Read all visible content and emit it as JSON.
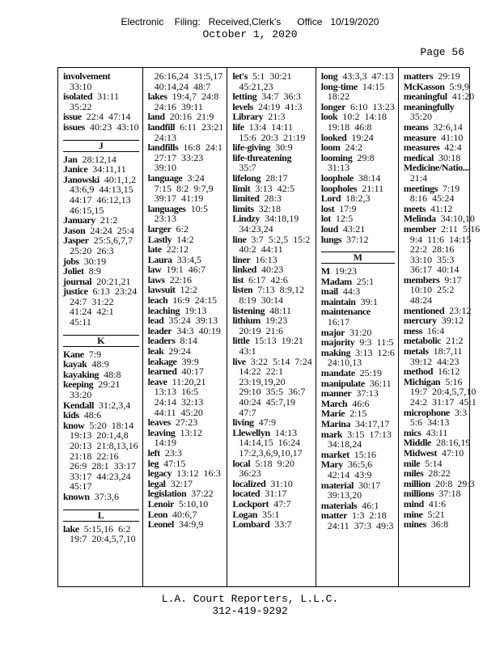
{
  "header": {
    "filing": "Electronic    Filing:   Received,Clerk's      Office   10/19/2020",
    "date": "October 1, 2020"
  },
  "page_label": "Page 56",
  "footer": {
    "company": "L.A. Court Reporters, L.L.C.",
    "phone": "312-419-9292"
  },
  "columns": [
    [
      {
        "t": "involvement",
        "r": "",
        "c": [
          "33:10"
        ]
      },
      {
        "t": "isolated",
        "r": "31:11",
        "c": [
          "35:22"
        ]
      },
      {
        "t": "issue",
        "r": "22:4  47:14",
        "c": []
      },
      {
        "t": "issues",
        "r": "40:23  43:10",
        "c": []
      },
      {
        "h": "J"
      },
      {
        "t": "Jan",
        "r": "28:12,14",
        "c": []
      },
      {
        "t": "Janice",
        "r": "34:11,11",
        "c": []
      },
      {
        "t": "Janowski",
        "r": "40:1,1,2",
        "c": [
          "43:6,9  44:13,15",
          "44:17  46:12,13",
          "46:15,15"
        ]
      },
      {
        "t": "January",
        "r": "21:2",
        "c": []
      },
      {
        "t": "Jason",
        "r": "24:24  25:4",
        "c": []
      },
      {
        "t": "Jasper",
        "r": "25:5,6,7,7",
        "c": [
          "25:20  26:3"
        ]
      },
      {
        "t": "jobs",
        "r": "30:19",
        "c": []
      },
      {
        "t": "Joliet",
        "r": "8:9",
        "c": []
      },
      {
        "t": "journal",
        "r": "20:21,21",
        "c": []
      },
      {
        "t": "justice",
        "r": "6:13  23:24",
        "c": [
          "24:7  31:22",
          "41:24  42:1",
          "45:11"
        ]
      },
      {
        "h": "K"
      },
      {
        "t": "Kane",
        "r": "7:9",
        "c": []
      },
      {
        "t": "kayak",
        "r": "48:9",
        "c": []
      },
      {
        "t": "kayaking",
        "r": "48:8",
        "c": []
      },
      {
        "t": "keeping",
        "r": "29:21",
        "c": [
          "33:20"
        ]
      },
      {
        "t": "Kendall",
        "r": "31:2,3,4",
        "c": []
      },
      {
        "t": "kids",
        "r": "48:6",
        "c": []
      },
      {
        "t": "know",
        "r": "5:20  18:14",
        "c": [
          "19:13  20:1,4,8",
          "20:13  21:8,13,16",
          "21:18  22:16",
          "26:9  28:1  33:17",
          "33:17  44:23,24",
          "45:17"
        ]
      },
      {
        "t": "known",
        "r": "37:3,6",
        "c": []
      },
      {
        "h": "L"
      },
      {
        "t": "lake",
        "r": "5:15,16  6:2",
        "c": [
          "19:7  20:4,5,7,10"
        ]
      }
    ],
    [
      {
        "t": "",
        "r": "",
        "c": [
          "26:16,24  31:5,17",
          "40:14,24  48:7"
        ]
      },
      {
        "t": "lakes",
        "r": "19:4,7  24:8",
        "c": [
          "24:16  39:11"
        ]
      },
      {
        "t": "land",
        "r": "20:16  21:9",
        "c": []
      },
      {
        "t": "landfill",
        "r": "6:11  23:21",
        "c": [
          "24:13"
        ]
      },
      {
        "t": "landfills",
        "r": "16:8  24:1",
        "c": [
          "27:17  33:23",
          "39:10"
        ]
      },
      {
        "t": "language",
        "r": "3:24",
        "c": [
          "7:15  8:2  9:7,9",
          "39:17  41:19"
        ]
      },
      {
        "t": "languages",
        "r": "10:5",
        "c": [
          "23:13"
        ]
      },
      {
        "t": "larger",
        "r": "6:2",
        "c": []
      },
      {
        "t": "Lastly",
        "r": "14:2",
        "c": []
      },
      {
        "t": "late",
        "r": "22:12",
        "c": []
      },
      {
        "t": "Laura",
        "r": "33:4,5",
        "c": []
      },
      {
        "t": "law",
        "r": "19:1  46:7",
        "c": []
      },
      {
        "t": "laws",
        "r": "22:16",
        "c": []
      },
      {
        "t": "lawsuit",
        "r": "12:2",
        "c": []
      },
      {
        "t": "leach",
        "r": "16:9  24:15",
        "c": []
      },
      {
        "t": "leaching",
        "r": "19:13",
        "c": []
      },
      {
        "t": "lead",
        "r": "35:24  39:13",
        "c": []
      },
      {
        "t": "leader",
        "r": "34:3  40:19",
        "c": []
      },
      {
        "t": "leaders",
        "r": "8:14",
        "c": []
      },
      {
        "t": "leak",
        "r": "29:24",
        "c": []
      },
      {
        "t": "leakage",
        "r": "39:9",
        "c": []
      },
      {
        "t": "learned",
        "r": "40:17",
        "c": []
      },
      {
        "t": "leave",
        "r": "11:20,21",
        "c": [
          "13:13  16:5",
          "24:14  32:13",
          "44:11  45:20"
        ]
      },
      {
        "t": "leaves",
        "r": "27:23",
        "c": []
      },
      {
        "t": "leaving",
        "r": "13:12",
        "c": [
          "14:19"
        ]
      },
      {
        "t": "left",
        "r": "23:3",
        "c": []
      },
      {
        "t": "leg",
        "r": "47:15",
        "c": []
      },
      {
        "t": "legacy",
        "r": "13:12  16:3",
        "c": []
      },
      {
        "t": "legal",
        "r": "32:17",
        "c": []
      },
      {
        "t": "legislation",
        "r": "37:22",
        "c": []
      },
      {
        "t": "Lenoir",
        "r": "5:10,10",
        "c": []
      },
      {
        "t": "Leon",
        "r": "40:6,7",
        "c": []
      },
      {
        "t": "Leonel",
        "r": "34:9,9",
        "c": []
      }
    ],
    [
      {
        "t": "let's",
        "r": "5:1  30:21",
        "c": [
          "45:21,23"
        ]
      },
      {
        "t": "letting",
        "r": "34:7  36:3",
        "c": []
      },
      {
        "t": "levels",
        "r": "24:19  41:3",
        "c": []
      },
      {
        "t": "Library",
        "r": "21:3",
        "c": []
      },
      {
        "t": "life",
        "r": "13:4  14:11",
        "c": [
          "15:6  20:3  21:19"
        ]
      },
      {
        "t": "life-giving",
        "r": "30:9",
        "c": []
      },
      {
        "t": "life-threatening",
        "r": "",
        "c": [
          "35:7"
        ]
      },
      {
        "t": "lifelong",
        "r": "28:17",
        "c": []
      },
      {
        "t": "limit",
        "r": "3:13  42:5",
        "c": []
      },
      {
        "t": "limited",
        "r": "28:3",
        "c": []
      },
      {
        "t": "limits",
        "r": "32:18",
        "c": []
      },
      {
        "t": "Lindzy",
        "r": "34:18,19",
        "c": [
          "34:23,24"
        ]
      },
      {
        "t": "line",
        "r": "3:7  5:2,5  15:2",
        "c": [
          "40:2  44:11"
        ]
      },
      {
        "t": "liner",
        "r": "16:13",
        "c": []
      },
      {
        "t": "linked",
        "r": "40:23",
        "c": []
      },
      {
        "t": "list",
        "r": "6:17  42:6",
        "c": []
      },
      {
        "t": "listen",
        "r": "7:13  8:9,12",
        "c": [
          "8:19  30:14"
        ]
      },
      {
        "t": "listening",
        "r": "48:11",
        "c": []
      },
      {
        "t": "lithium",
        "r": "19:23",
        "c": [
          "20:19  21:6"
        ]
      },
      {
        "t": "little",
        "r": "15:13  19:21",
        "c": [
          "43:1"
        ]
      },
      {
        "t": "live",
        "r": "3:22  5:14  7:24",
        "c": [
          "14:22  22:1",
          "23:19,19,20",
          "29:10  35:5  36:7",
          "40:24  45:7,19",
          "47:7"
        ]
      },
      {
        "t": "living",
        "r": "47:9",
        "c": []
      },
      {
        "t": "Llewellyn",
        "r": "14:13",
        "c": [
          "14:14,15  16:24",
          "17:2,3,6,9,10,17"
        ]
      },
      {
        "t": "local",
        "r": "5:18  9:20",
        "c": [
          "36:23"
        ]
      },
      {
        "t": "localized",
        "r": "31:10",
        "c": []
      },
      {
        "t": "located",
        "r": "31:17",
        "c": []
      },
      {
        "t": "Lockport",
        "r": "47:7",
        "c": []
      },
      {
        "t": "Logan",
        "r": "35:1",
        "c": []
      },
      {
        "t": "Lombard",
        "r": "33:7",
        "c": []
      }
    ],
    [
      {
        "t": "long",
        "r": "43:3,3  47:13",
        "c": []
      },
      {
        "t": "long-time",
        "r": "14:15",
        "c": [
          "18:22"
        ]
      },
      {
        "t": "longer",
        "r": "6:10  13:23",
        "c": []
      },
      {
        "t": "look",
        "r": "10:2  14:18",
        "c": [
          "19:18  46:8"
        ]
      },
      {
        "t": "looked",
        "r": "19:24",
        "c": []
      },
      {
        "t": "loom",
        "r": "24:2",
        "c": []
      },
      {
        "t": "looming",
        "r": "29:8",
        "c": [
          "31:13"
        ]
      },
      {
        "t": "loophole",
        "r": "38:14",
        "c": []
      },
      {
        "t": "loopholes",
        "r": "21:11",
        "c": []
      },
      {
        "t": "Lord",
        "r": "18:2,3",
        "c": []
      },
      {
        "t": "lost",
        "r": "17:9",
        "c": []
      },
      {
        "t": "lot",
        "r": "12:5",
        "c": []
      },
      {
        "t": "loud",
        "r": "43:21",
        "c": []
      },
      {
        "t": "lungs",
        "r": "37:12",
        "c": []
      },
      {
        "h": "M"
      },
      {
        "t": "M",
        "r": "19:23",
        "c": []
      },
      {
        "t": "Madam",
        "r": "25:1",
        "c": []
      },
      {
        "t": "mail",
        "r": "44:3",
        "c": []
      },
      {
        "t": "maintain",
        "r": "39:1",
        "c": []
      },
      {
        "t": "maintenance",
        "r": "",
        "c": [
          "16:17"
        ]
      },
      {
        "t": "major",
        "r": "31:20",
        "c": []
      },
      {
        "t": "majority",
        "r": "9:3  11:5",
        "c": []
      },
      {
        "t": "making",
        "r": "3:13  12:6",
        "c": [
          "24:10,13"
        ]
      },
      {
        "t": "mandate",
        "r": "25:19",
        "c": []
      },
      {
        "t": "manipulate",
        "r": "36:11",
        "c": []
      },
      {
        "t": "manner",
        "r": "37:13",
        "c": []
      },
      {
        "t": "March",
        "r": "46:6",
        "c": []
      },
      {
        "t": "Marie",
        "r": "2:15",
        "c": []
      },
      {
        "t": "Marina",
        "r": "34:17,17",
        "c": []
      },
      {
        "t": "mark",
        "r": "3:15  17:13",
        "c": [
          "34:18,24"
        ]
      },
      {
        "t": "market",
        "r": "15:16",
        "c": []
      },
      {
        "t": "Mary",
        "r": "36:5,6",
        "c": [
          "42:14  43:9"
        ]
      },
      {
        "t": "material",
        "r": "30:17",
        "c": [
          "39:13,20"
        ]
      },
      {
        "t": "materials",
        "r": "46:1",
        "c": []
      },
      {
        "t": "matter",
        "r": "1:3  2:18",
        "c": [
          "24:11  37:3  49:3"
        ]
      }
    ],
    [
      {
        "t": "matters",
        "r": "29:19",
        "c": []
      },
      {
        "t": "McKasson",
        "r": "5:9,9",
        "c": []
      },
      {
        "t": "meaningful",
        "r": "41:20",
        "c": []
      },
      {
        "t": "meaningfully",
        "r": "",
        "c": [
          "35:20"
        ]
      },
      {
        "t": "means",
        "r": "32:6,14",
        "c": []
      },
      {
        "t": "measure",
        "r": "41:10",
        "c": []
      },
      {
        "t": "measures",
        "r": "42:4",
        "c": []
      },
      {
        "t": "medical",
        "r": "30:18",
        "c": []
      },
      {
        "t": "Medicine/Natio...",
        "r": "",
        "c": [
          "21:4"
        ]
      },
      {
        "t": "meetings",
        "r": "7:19",
        "c": [
          "8:16  45:24"
        ]
      },
      {
        "t": "meets",
        "r": "41:12",
        "c": []
      },
      {
        "t": "Melinda",
        "r": "34:10,10",
        "c": []
      },
      {
        "t": "member",
        "r": "2:11  5:16",
        "c": [
          "9:4  11:6  14:15",
          "22:2  28:16",
          "33:10  35:3",
          "36:17  40:14"
        ]
      },
      {
        "t": "members",
        "r": "9:17",
        "c": [
          "10:10  25:2",
          "48:24"
        ]
      },
      {
        "t": "mentioned",
        "r": "23:12",
        "c": []
      },
      {
        "t": "mercury",
        "r": "39:12",
        "c": []
      },
      {
        "t": "mess",
        "r": "16:4",
        "c": []
      },
      {
        "t": "metabolic",
        "r": "21:2",
        "c": []
      },
      {
        "t": "metals",
        "r": "18:7,11",
        "c": [
          "39:12  44:23"
        ]
      },
      {
        "t": "method",
        "r": "16:12",
        "c": []
      },
      {
        "t": "Michigan",
        "r": "5:16",
        "c": [
          "19:7  20:4,5,7,10",
          "24:2  31:17  45:1"
        ]
      },
      {
        "t": "microphone",
        "r": "3:3",
        "c": [
          "5:6  34:13"
        ]
      },
      {
        "t": "mics",
        "r": "43:11",
        "c": []
      },
      {
        "t": "Middle",
        "r": "28:16,19",
        "c": []
      },
      {
        "t": "Midwest",
        "r": "47:10",
        "c": []
      },
      {
        "t": "mile",
        "r": "5:14",
        "c": []
      },
      {
        "t": "miles",
        "r": "28:22",
        "c": []
      },
      {
        "t": "million",
        "r": "20:8  29:3",
        "c": []
      },
      {
        "t": "millions",
        "r": "37:18",
        "c": []
      },
      {
        "t": "mind",
        "r": "41:6",
        "c": []
      },
      {
        "t": "mine",
        "r": "5:21",
        "c": []
      },
      {
        "t": "mines",
        "r": "36:8",
        "c": []
      }
    ]
  ]
}
